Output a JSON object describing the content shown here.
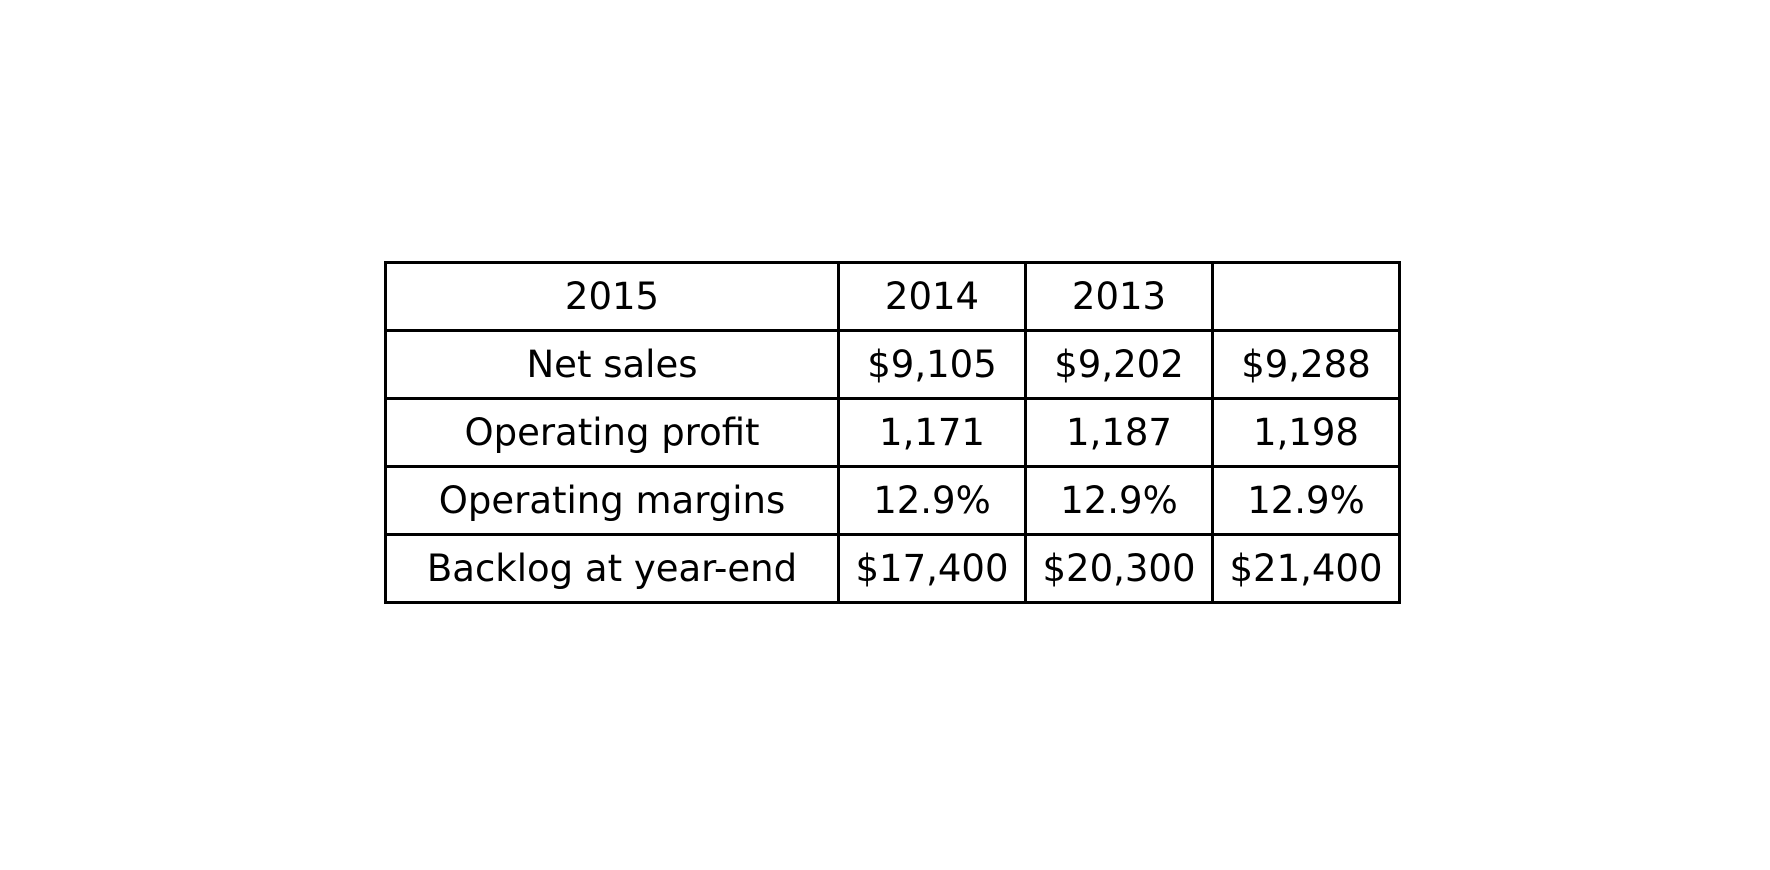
{
  "chart_data": {
    "type": "table",
    "header": [
      "2015",
      "2014",
      "2013",
      ""
    ],
    "rows": [
      [
        "Net sales",
        "$9,105",
        "$9,202",
        "$9,288"
      ],
      [
        "Operating profit",
        "1,171",
        "1,187",
        "1,198"
      ],
      [
        "Operating margins",
        "12.9%",
        "12.9%",
        "12.9%"
      ],
      [
        "Backlog at year-end",
        "$17,400",
        "$20,300",
        "$21,400"
      ]
    ]
  }
}
